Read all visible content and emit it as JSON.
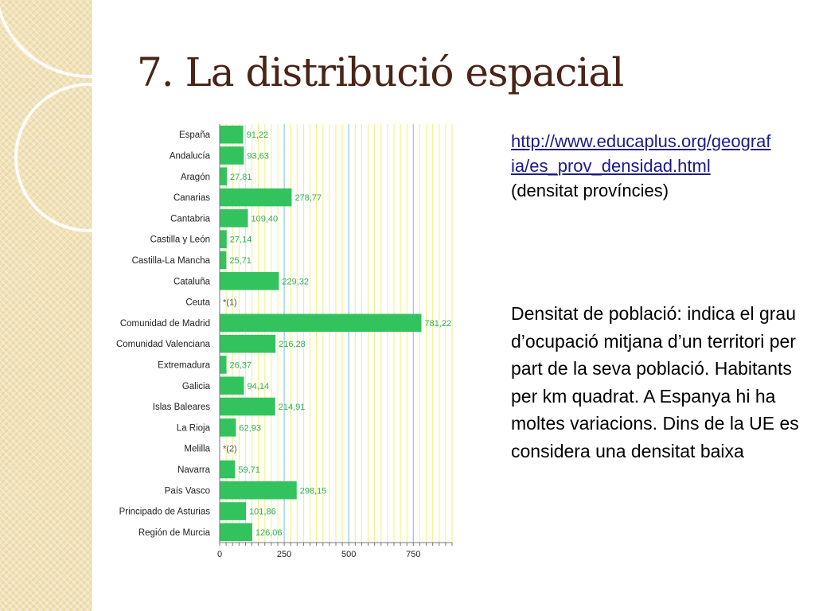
{
  "slide": {
    "title": "7. La distribució espacial"
  },
  "source": {
    "link_text": "http://www.educaplus.org/geografia/es_prov_densidad.html",
    "caption": "(densitat províncies)"
  },
  "description": "Densitat de població: indica el grau d’ocupació mitjana d’un territori per part de la seva població. Habitants per km quadrat. A Espanya hi ha moltes variacions. Dins de la UE es considera una densitat baixa",
  "colors": {
    "bar": "#33c35e",
    "bar_label": "#2fae55",
    "grid_minor": "#f2f07a",
    "grid_major": "#9fd3d0",
    "title": "#4a2417",
    "link": "#1a1a8c"
  },
  "chart_data": {
    "type": "bar",
    "orientation": "horizontal",
    "title": "",
    "xlabel": "",
    "ylabel": "",
    "xlim": [
      0,
      900
    ],
    "x_ticks": [
      0,
      250,
      500,
      750
    ],
    "grid": true,
    "categories": [
      "España",
      "Andalucía",
      "Aragón",
      "Canarias",
      "Cantabria",
      "Castilla y León",
      "Castilla-La Mancha",
      "Cataluña",
      "Ceuta",
      "Comunidad de Madrid",
      "Comunidad Valenciana",
      "Extremadura",
      "Galicia",
      "Islas Baleares",
      "La Rioja",
      "Melilla",
      "Navarra",
      "País Vasco",
      "Principado de Asturias",
      "Región de Murcia"
    ],
    "values": [
      91.22,
      93.63,
      27.81,
      278.77,
      109.4,
      27.14,
      25.71,
      229.32,
      null,
      781.22,
      216.28,
      26.37,
      94.14,
      214.91,
      62.93,
      null,
      59.71,
      298.15,
      101.86,
      126.06
    ],
    "value_labels": [
      "91,22",
      "93,63",
      "27,81",
      "278,77",
      "109,40",
      "27,14",
      "25,71",
      "229,32",
      "*(1)",
      "781,22",
      "216,28",
      "26,37",
      "94,14",
      "214,91",
      "62,93",
      "*(2)",
      "59,71",
      "298,15",
      "101,86",
      "126,06"
    ]
  }
}
